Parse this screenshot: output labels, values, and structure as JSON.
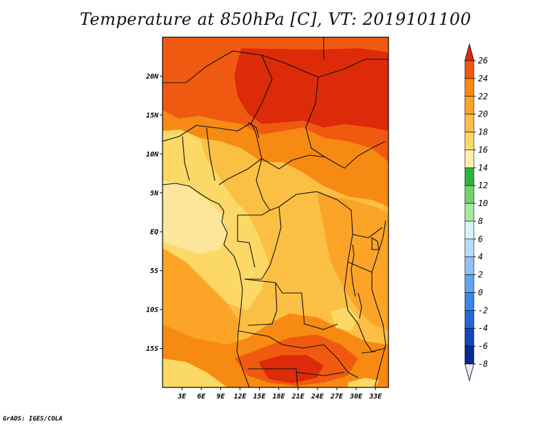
{
  "title": "Temperature at 850hPa [C], VT: 2019101100",
  "credit": "GrADS: IGES/COLA",
  "map": {
    "lon_range": [
      0,
      35
    ],
    "lat_range": [
      -20,
      25
    ],
    "lat_ticks": [
      "20N",
      "15N",
      "10N",
      "5N",
      "EQ",
      "5S",
      "10S",
      "15S"
    ],
    "lat_tick_values": [
      20,
      15,
      10,
      5,
      0,
      -5,
      -10,
      -15
    ],
    "lon_ticks": [
      "3E",
      "6E",
      "9E",
      "12E",
      "15E",
      "18E",
      "21E",
      "24E",
      "27E",
      "30E",
      "33E"
    ],
    "lon_tick_values": [
      3,
      6,
      9,
      12,
      15,
      18,
      21,
      24,
      27,
      30,
      33
    ]
  },
  "colorbar": {
    "labels": [
      "26",
      "24",
      "22",
      "20",
      "18",
      "16",
      "14",
      "12",
      "10",
      "8",
      "6",
      "4",
      "2",
      "0",
      "-2",
      "-4",
      "-6",
      "-8"
    ],
    "colors": [
      "#dd2a08",
      "#f05a10",
      "#f78a12",
      "#fba428",
      "#fbbf44",
      "#fcd866",
      "#fef0a8",
      "#2eb63c",
      "#6ed36a",
      "#a6e8a0",
      "#d6f3f8",
      "#bbdcf6",
      "#8ec2f2",
      "#5ea6ee",
      "#3b86e6",
      "#2468d8",
      "#1448b8",
      "#0a2890",
      "#081a6a"
    ],
    "top_arrow_color": "#dd2a08",
    "bottom_arrow_color": "#e8e8ff"
  },
  "colors": {
    "very_hot": "#dd2a08",
    "hot": "#f05a10",
    "warm": "#f78a12",
    "mild": "#fba428",
    "cool": "#fbbf44",
    "cooler": "#fcd866",
    "pale": "#fde69a",
    "border": "#111111"
  }
}
